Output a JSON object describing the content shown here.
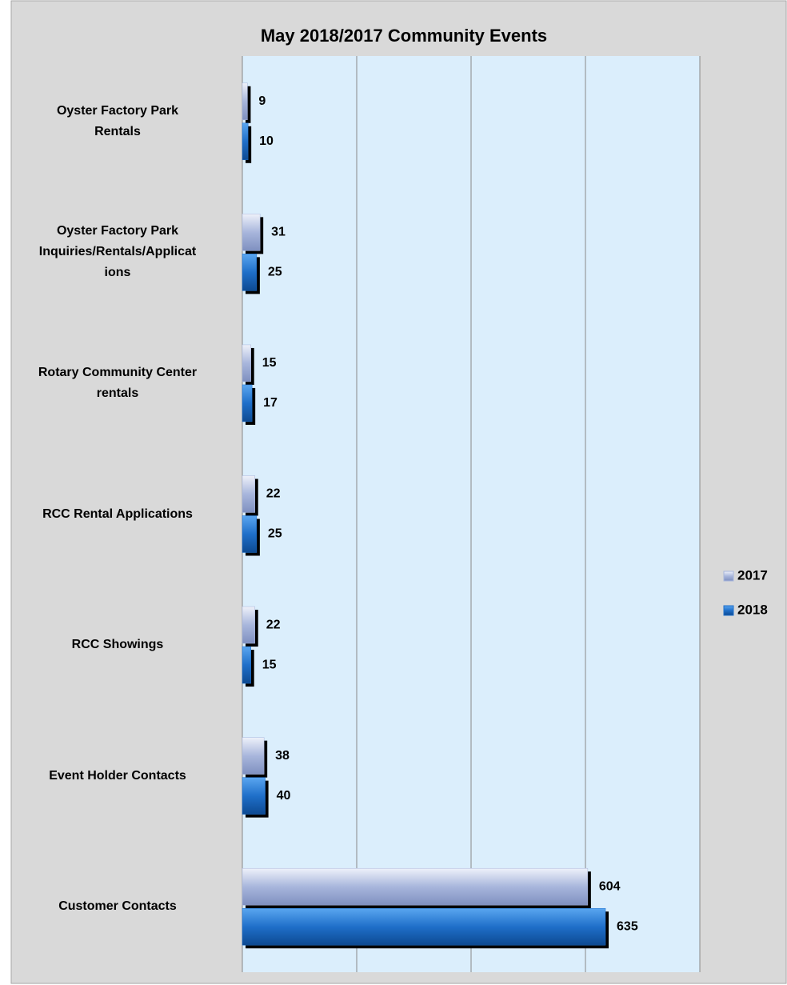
{
  "chart_data": {
    "type": "bar",
    "orientation": "horizontal",
    "title": "May 2018/2017 Community Events",
    "categories": [
      "Oyster Factory Park\nRentals",
      "Oyster Factory Park\nInquiries/Rentals/Applicat\nions",
      "Rotary Community Center\nrentals",
      "RCC Rental Applications",
      "RCC Showings",
      "Event Holder Contacts",
      "Customer Contacts"
    ],
    "series": [
      {
        "name": "2017",
        "color": "#a8b6dc",
        "values": [
          9,
          31,
          15,
          22,
          22,
          38,
          604
        ]
      },
      {
        "name": "2018",
        "color": "#1f6fc9",
        "values": [
          10,
          25,
          17,
          25,
          15,
          40,
          635
        ]
      }
    ],
    "xlim": [
      0,
      800
    ],
    "xticks": [
      0,
      200,
      400,
      600,
      800
    ],
    "grid": true,
    "legend": "right"
  }
}
